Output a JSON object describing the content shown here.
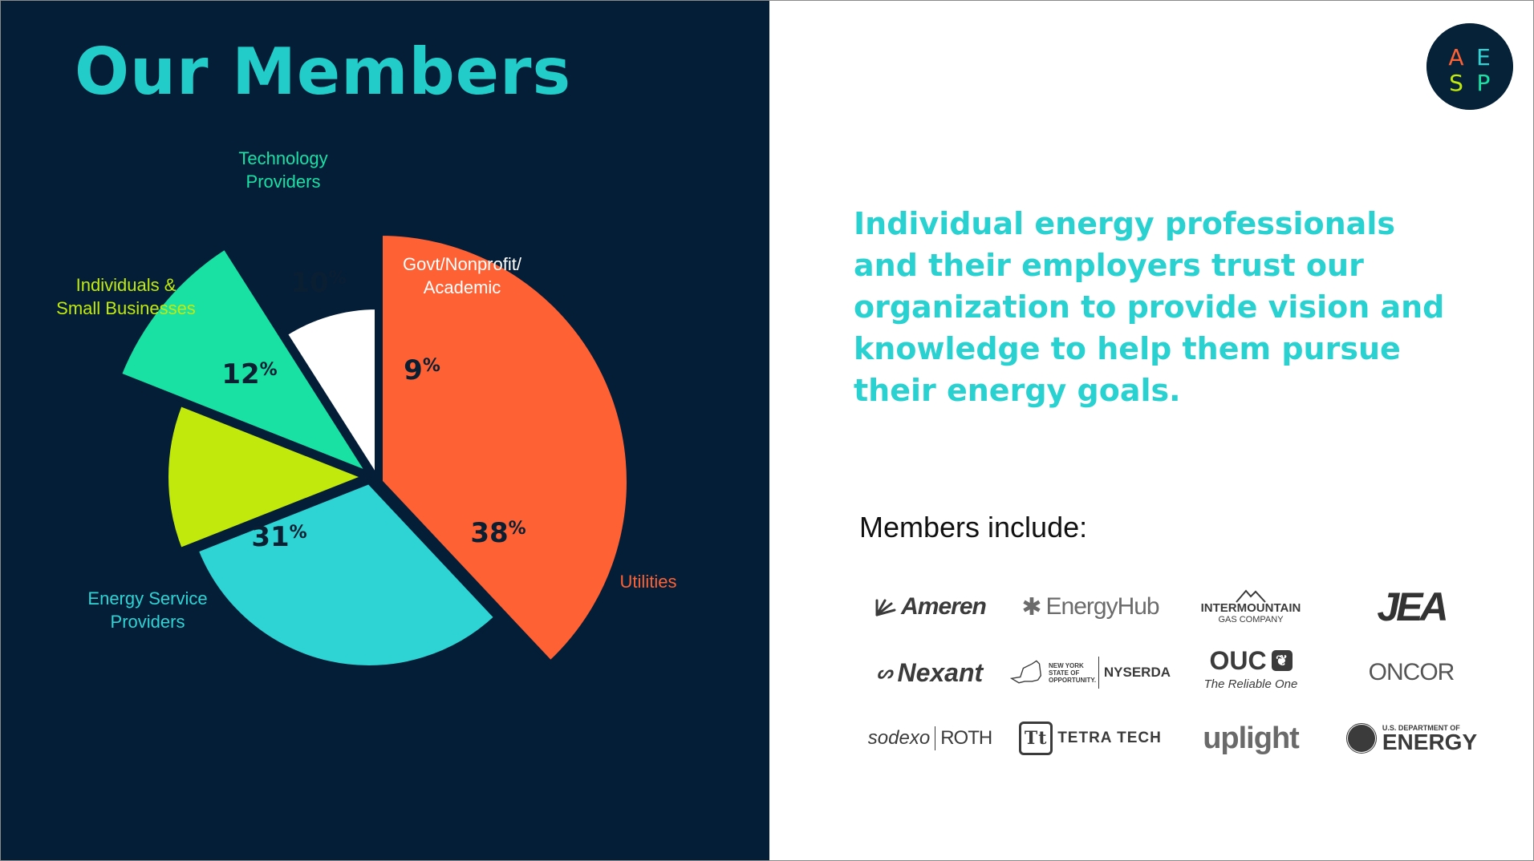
{
  "slide": {
    "title": "Our Members",
    "tagline": "Individual energy professionals and their employers trust our organization to provide vision and knowledge to help them pursue their energy goals.",
    "members_heading": "Members include:",
    "logo_letters": [
      "A",
      "E",
      "S",
      "P"
    ],
    "colors": {
      "dark_bg": "#041e38",
      "accent_teal": "#22ccc9",
      "utilities": "#fe6134",
      "energy_service": "#2dd4d3",
      "individuals": "#c1ea0c",
      "technology": "#19e1a4",
      "govt": "#ffffff"
    }
  },
  "chart_data": {
    "type": "pie",
    "title": "",
    "slices": [
      {
        "name": "Utilities",
        "label": "Utilities",
        "value": 38,
        "display": "38",
        "unit": "%",
        "color": "#fe6134"
      },
      {
        "name": "Energy Service Providers",
        "label": "Energy Service Providers",
        "label_lines": [
          "Energy Service",
          "Providers"
        ],
        "value": 31,
        "display": "31",
        "unit": "%",
        "color": "#2dd4d3"
      },
      {
        "name": "Individuals & Small Businesses",
        "label": "Individuals & Small Businesses",
        "label_lines": [
          "Individuals &",
          "Small Businesses"
        ],
        "value": 12,
        "display": "12",
        "unit": "%",
        "color": "#c1ea0c"
      },
      {
        "name": "Technology Providers",
        "label": "Technology Providers",
        "label_lines": [
          "Technology",
          "Providers"
        ],
        "value": 10,
        "display": "10",
        "unit": "%",
        "color": "#19e1a4"
      },
      {
        "name": "Govt/Nonprofit/Academic",
        "label": "Govt/Nonprofit/Academic",
        "label_lines": [
          "Govt/Nonprofit/",
          "Academic"
        ],
        "value": 9,
        "display": "9",
        "unit": "%",
        "color": "#ffffff"
      }
    ]
  },
  "members": [
    {
      "name": "Ameren",
      "text": "Ameren",
      "icon": "ameren-sunburst-icon"
    },
    {
      "name": "EnergyHub",
      "text": "EnergyHub",
      "icon": "energyhub-asterisk-icon"
    },
    {
      "name": "Intermountain Gas Company",
      "text": "INTERMOUNTAIN",
      "subtext": "GAS COMPANY",
      "icon": "mountain-icon"
    },
    {
      "name": "JEA",
      "text": "JEA"
    },
    {
      "name": "Nexant",
      "text": "Nexant",
      "icon": "nexant-swirl-icon"
    },
    {
      "name": "NYSERDA",
      "text": "NYSERDA",
      "subtext": "NEW YORK STATE OF OPPORTUNITY.",
      "icon": "new-york-state-icon"
    },
    {
      "name": "OUC",
      "text": "OUC",
      "subtext": "The Reliable One",
      "icon": "ouc-leaf-icon"
    },
    {
      "name": "Oncor",
      "text": "ONCOR"
    },
    {
      "name": "Sodexo Roth",
      "text": "sodexo",
      "subtext": "ROTH"
    },
    {
      "name": "Tetra Tech",
      "text": "TETRA TECH",
      "icon": "tetra-tech-tt-icon"
    },
    {
      "name": "Uplight",
      "text": "uplight"
    },
    {
      "name": "U.S. Department of Energy",
      "text": "ENERGY",
      "subtext": "U.S. DEPARTMENT OF",
      "icon": "doe-seal-icon"
    }
  ]
}
